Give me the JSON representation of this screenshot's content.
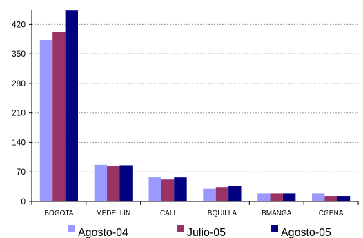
{
  "chart_data": {
    "type": "bar",
    "title": "",
    "xlabel": "",
    "ylabel": "",
    "ylim": [
      0,
      455
    ],
    "yticks": [
      0,
      70,
      140,
      210,
      280,
      350,
      420
    ],
    "grid": true,
    "legend_position": "bottom",
    "categories": [
      "BOGOTA",
      "MEDELLIN",
      "CALI",
      "BQUILLA",
      "BMANGA",
      "CGENA"
    ],
    "series": [
      {
        "name": "Agosto-04",
        "color": "#9999ff",
        "values": [
          383,
          87,
          57,
          30,
          19,
          19
        ]
      },
      {
        "name": "Julio-05",
        "color": "#993366",
        "values": [
          402,
          84,
          52,
          34,
          19,
          13
        ]
      },
      {
        "name": "Agosto-05",
        "color": "#000080",
        "values": [
          453,
          86,
          57,
          37,
          19,
          13
        ]
      }
    ]
  }
}
